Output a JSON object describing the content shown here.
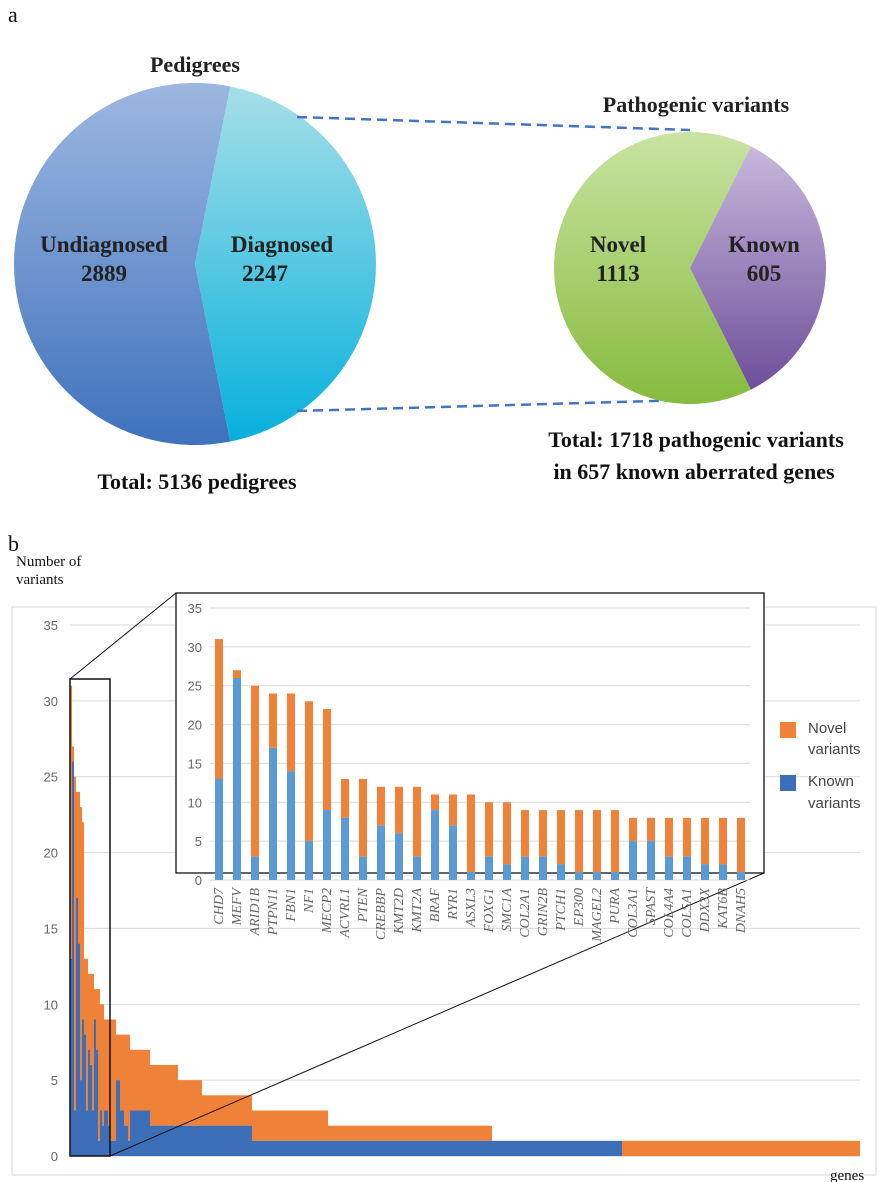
{
  "panel_a": {
    "letter": "a"
  },
  "panel_b": {
    "letter": "b"
  },
  "colors": {
    "pedigree_undiagnosed": "#5b88c8",
    "pedigree_diagnosed": "#4fc6e0",
    "variant_novel": "#9cc55a",
    "variant_known": "#9b7db8",
    "bar_novel": "#ef8138",
    "bar_known": "#3d6fb8",
    "inset_known": "#5b9bd5",
    "connector": "#4472c4"
  },
  "chart_data": [
    {
      "type": "pie",
      "title": "Pedigrees",
      "slices": [
        {
          "label": "Undiagnosed",
          "value": 2889
        },
        {
          "label": "Diagnosed",
          "value": 2247
        }
      ],
      "footer": "Total: 5136 pedigrees"
    },
    {
      "type": "pie",
      "title": "Pathogenic variants",
      "slices": [
        {
          "label": "Novel",
          "value": 1113
        },
        {
          "label": "Known",
          "value": 605
        }
      ],
      "footer_lines": [
        "Total: 1718 pathogenic variants",
        "in 657 known aberrated genes"
      ]
    },
    {
      "type": "bar",
      "stacked": true,
      "ylabel_lines": [
        "Number of",
        "variants"
      ],
      "xlabel": "genes",
      "ylim": [
        0,
        35
      ],
      "yticks": [
        0,
        5,
        10,
        15,
        20,
        25,
        30,
        35
      ],
      "legend": {
        "position": "right",
        "entries": [
          [
            "Novel",
            "variants"
          ],
          [
            "Known",
            "variants"
          ]
        ]
      },
      "distribution": [
        {
          "total": 31,
          "known": 13,
          "genes": 1
        },
        {
          "total": 27,
          "known": 26,
          "genes": 1
        },
        {
          "total": 25,
          "known": 3,
          "genes": 1
        },
        {
          "total": 24,
          "known": 17,
          "genes": 1
        },
        {
          "total": 24,
          "known": 14,
          "genes": 1
        },
        {
          "total": 23,
          "known": 5,
          "genes": 1
        },
        {
          "total": 22,
          "known": 9,
          "genes": 1
        },
        {
          "total": 13,
          "known": 8,
          "genes": 1
        },
        {
          "total": 13,
          "known": 3,
          "genes": 1
        },
        {
          "total": 12,
          "known": 7,
          "genes": 1
        },
        {
          "total": 12,
          "known": 6,
          "genes": 1
        },
        {
          "total": 12,
          "known": 3,
          "genes": 1
        },
        {
          "total": 11,
          "known": 9,
          "genes": 1
        },
        {
          "total": 11,
          "known": 7,
          "genes": 1
        },
        {
          "total": 11,
          "known": 1,
          "genes": 1
        },
        {
          "total": 10,
          "known": 3,
          "genes": 1
        },
        {
          "total": 10,
          "known": 2,
          "genes": 1
        },
        {
          "total": 9,
          "known": 3,
          "genes": 1
        },
        {
          "total": 9,
          "known": 3,
          "genes": 1
        },
        {
          "total": 9,
          "known": 2,
          "genes": 1
        },
        {
          "total": 9,
          "known": 1,
          "genes": 1
        },
        {
          "total": 9,
          "known": 1,
          "genes": 1
        },
        {
          "total": 9,
          "known": 1,
          "genes": 1
        },
        {
          "total": 8,
          "known": 5,
          "genes": 1
        },
        {
          "total": 8,
          "known": 5,
          "genes": 1
        },
        {
          "total": 8,
          "known": 3,
          "genes": 1
        },
        {
          "total": 8,
          "known": 3,
          "genes": 1
        },
        {
          "total": 8,
          "known": 2,
          "genes": 1
        },
        {
          "total": 8,
          "known": 2,
          "genes": 1
        },
        {
          "total": 8,
          "known": 1,
          "genes": 1
        },
        {
          "total": 7,
          "known": 3,
          "genes": 10
        },
        {
          "total": 6,
          "known": 2,
          "genes": 14
        },
        {
          "total": 5,
          "known": 2,
          "genes": 12
        },
        {
          "total": 4,
          "known": 2,
          "genes": 25
        },
        {
          "total": 3,
          "known": 1,
          "genes": 38
        },
        {
          "total": 2,
          "known": 1,
          "genes": 82
        },
        {
          "total": 1,
          "known": 1,
          "genes": 65
        },
        {
          "total": 1,
          "known": 0,
          "genes": 119
        }
      ]
    },
    {
      "type": "bar",
      "stacked": true,
      "ylim": [
        0,
        35
      ],
      "yticks": [
        0,
        5,
        10,
        15,
        20,
        25,
        30,
        35
      ],
      "categories": [
        "CHD7",
        "MEFV",
        "ARID1B",
        "PTPN11",
        "FBN1",
        "NF1",
        "MECP2",
        "ACVRL1",
        "PTEN",
        "CREBBP",
        "KMT2D",
        "KMT2A",
        "BRAF",
        "RYR1",
        "ASXL3",
        "FOXG1",
        "SMC1A",
        "COL2A1",
        "GRIN2B",
        "PTCH1",
        "EP300",
        "MAGEL2",
        "PURA",
        "COL3A1",
        "SPAST",
        "COL4A4",
        "COL5A1",
        "DDX3X",
        "KAT6B",
        "DNAH5"
      ],
      "series": [
        {
          "name": "Known variants",
          "values": [
            13,
            26,
            3,
            17,
            14,
            5,
            9,
            8,
            3,
            7,
            6,
            3,
            9,
            7,
            1,
            3,
            2,
            3,
            3,
            2,
            1,
            1,
            1,
            5,
            5,
            3,
            3,
            2,
            2,
            1
          ]
        },
        {
          "name": "Novel variants",
          "values": [
            18,
            1,
            22,
            7,
            10,
            18,
            13,
            5,
            10,
            5,
            6,
            9,
            2,
            4,
            10,
            7,
            8,
            6,
            6,
            7,
            8,
            8,
            8,
            3,
            3,
            5,
            5,
            6,
            6,
            7
          ]
        }
      ]
    }
  ]
}
